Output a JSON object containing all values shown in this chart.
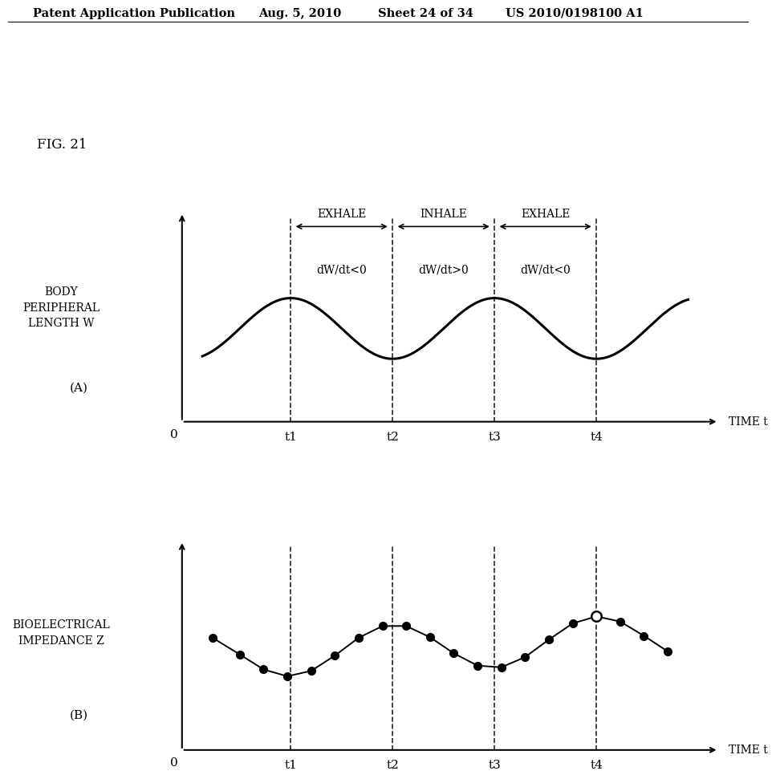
{
  "fig_label": "FIG. 21",
  "patent_header": "Patent Application Publication",
  "patent_date": "Aug. 5, 2010",
  "patent_sheet": "Sheet 24 of 34",
  "patent_number": "US 2010/0198100 A1",
  "background_color": "#ffffff",
  "t1": 1.5,
  "t2": 3.0,
  "t3": 4.5,
  "t4": 6.0,
  "x_min": 0.0,
  "x_max": 7.5,
  "t_labels": [
    "t1",
    "t2",
    "t3",
    "t4"
  ],
  "exhale1": "EXHALE",
  "inhale": "INHALE",
  "exhale2": "EXHALE",
  "dw1": "dW/dt<0",
  "dw2": "dW/dt>0",
  "dw3": "dW/dt<0",
  "ylabel_A": "BODY\nPERIPHERAL\nLENGTH W",
  "label_A": "(A)",
  "ylabel_B": "BIOELECTRICAL\nIMPEDANCE Z",
  "label_B": "(B)",
  "xlabel": "TIME t"
}
